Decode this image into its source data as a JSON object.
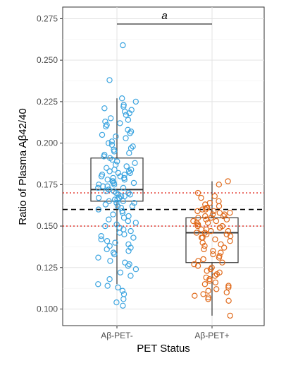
{
  "chart_data": {
    "type": "box",
    "title": "",
    "xlabel": "PET Status",
    "ylabel": "Ratio of Plasma Aβ42/40",
    "ylim": [
      0.09,
      0.282
    ],
    "y_ticks": [
      0.1,
      0.125,
      0.15,
      0.175,
      0.2,
      0.225,
      0.25,
      0.275
    ],
    "y_tick_labels": [
      "0.100",
      "0.125",
      "0.150",
      "0.175",
      "0.200",
      "0.225",
      "0.250",
      "0.275"
    ],
    "categories": [
      "Aβ-PET-",
      "Aβ-PET+"
    ],
    "grid": true,
    "significance": {
      "label": "a",
      "groups": [
        "Aβ-PET-",
        "Aβ-PET+"
      ]
    },
    "reference_lines": [
      {
        "value": 0.16,
        "style": "dashed",
        "color": "#000000"
      },
      {
        "value": 0.17,
        "style": "dotted",
        "color": "#e0291f"
      },
      {
        "value": 0.15,
        "style": "dotted",
        "color": "#e0291f"
      }
    ],
    "series": [
      {
        "category": "Aβ-PET-",
        "color": "#3da5e0",
        "box": {
          "whisker_low": 0.115,
          "q1": 0.165,
          "median": 0.172,
          "q3": 0.191,
          "whisker_high": 0.227
        },
        "points": [
          0.259,
          0.238,
          0.227,
          0.225,
          0.223,
          0.222,
          0.221,
          0.22,
          0.219,
          0.218,
          0.217,
          0.215,
          0.214,
          0.213,
          0.212,
          0.211,
          0.21,
          0.208,
          0.207,
          0.206,
          0.205,
          0.204,
          0.203,
          0.201,
          0.2,
          0.199,
          0.198,
          0.197,
          0.196,
          0.195,
          0.194,
          0.193,
          0.192,
          0.191,
          0.19,
          0.189,
          0.188,
          0.187,
          0.186,
          0.185,
          0.184,
          0.184,
          0.183,
          0.183,
          0.182,
          0.182,
          0.181,
          0.181,
          0.18,
          0.18,
          0.179,
          0.179,
          0.178,
          0.178,
          0.177,
          0.177,
          0.176,
          0.176,
          0.175,
          0.175,
          0.174,
          0.174,
          0.173,
          0.173,
          0.172,
          0.172,
          0.171,
          0.171,
          0.17,
          0.17,
          0.169,
          0.169,
          0.168,
          0.168,
          0.167,
          0.167,
          0.166,
          0.166,
          0.165,
          0.165,
          0.164,
          0.164,
          0.163,
          0.162,
          0.162,
          0.161,
          0.16,
          0.159,
          0.158,
          0.157,
          0.156,
          0.155,
          0.154,
          0.153,
          0.152,
          0.151,
          0.15,
          0.149,
          0.148,
          0.147,
          0.146,
          0.145,
          0.144,
          0.143,
          0.142,
          0.141,
          0.14,
          0.139,
          0.138,
          0.137,
          0.136,
          0.135,
          0.134,
          0.133,
          0.131,
          0.129,
          0.128,
          0.127,
          0.126,
          0.124,
          0.122,
          0.12,
          0.118,
          0.115,
          0.114,
          0.113,
          0.111,
          0.109,
          0.106,
          0.104,
          0.102
        ]
      },
      {
        "category": "Aβ-PET+",
        "color": "#e06a1b",
        "box": {
          "whisker_low": 0.096,
          "q1": 0.128,
          "median": 0.146,
          "q3": 0.155,
          "whisker_high": 0.177
        },
        "points": [
          0.177,
          0.175,
          0.17,
          0.168,
          0.167,
          0.165,
          0.164,
          0.163,
          0.162,
          0.161,
          0.161,
          0.16,
          0.16,
          0.159,
          0.159,
          0.158,
          0.158,
          0.157,
          0.157,
          0.156,
          0.156,
          0.155,
          0.155,
          0.155,
          0.154,
          0.154,
          0.153,
          0.153,
          0.152,
          0.152,
          0.151,
          0.151,
          0.15,
          0.15,
          0.149,
          0.149,
          0.148,
          0.148,
          0.147,
          0.147,
          0.146,
          0.146,
          0.145,
          0.145,
          0.144,
          0.143,
          0.143,
          0.142,
          0.141,
          0.14,
          0.139,
          0.138,
          0.137,
          0.136,
          0.135,
          0.134,
          0.133,
          0.132,
          0.131,
          0.13,
          0.129,
          0.128,
          0.127,
          0.126,
          0.125,
          0.124,
          0.123,
          0.122,
          0.121,
          0.12,
          0.119,
          0.118,
          0.117,
          0.116,
          0.115,
          0.114,
          0.113,
          0.112,
          0.111,
          0.11,
          0.109,
          0.108,
          0.107,
          0.106,
          0.105,
          0.096
        ]
      }
    ]
  }
}
